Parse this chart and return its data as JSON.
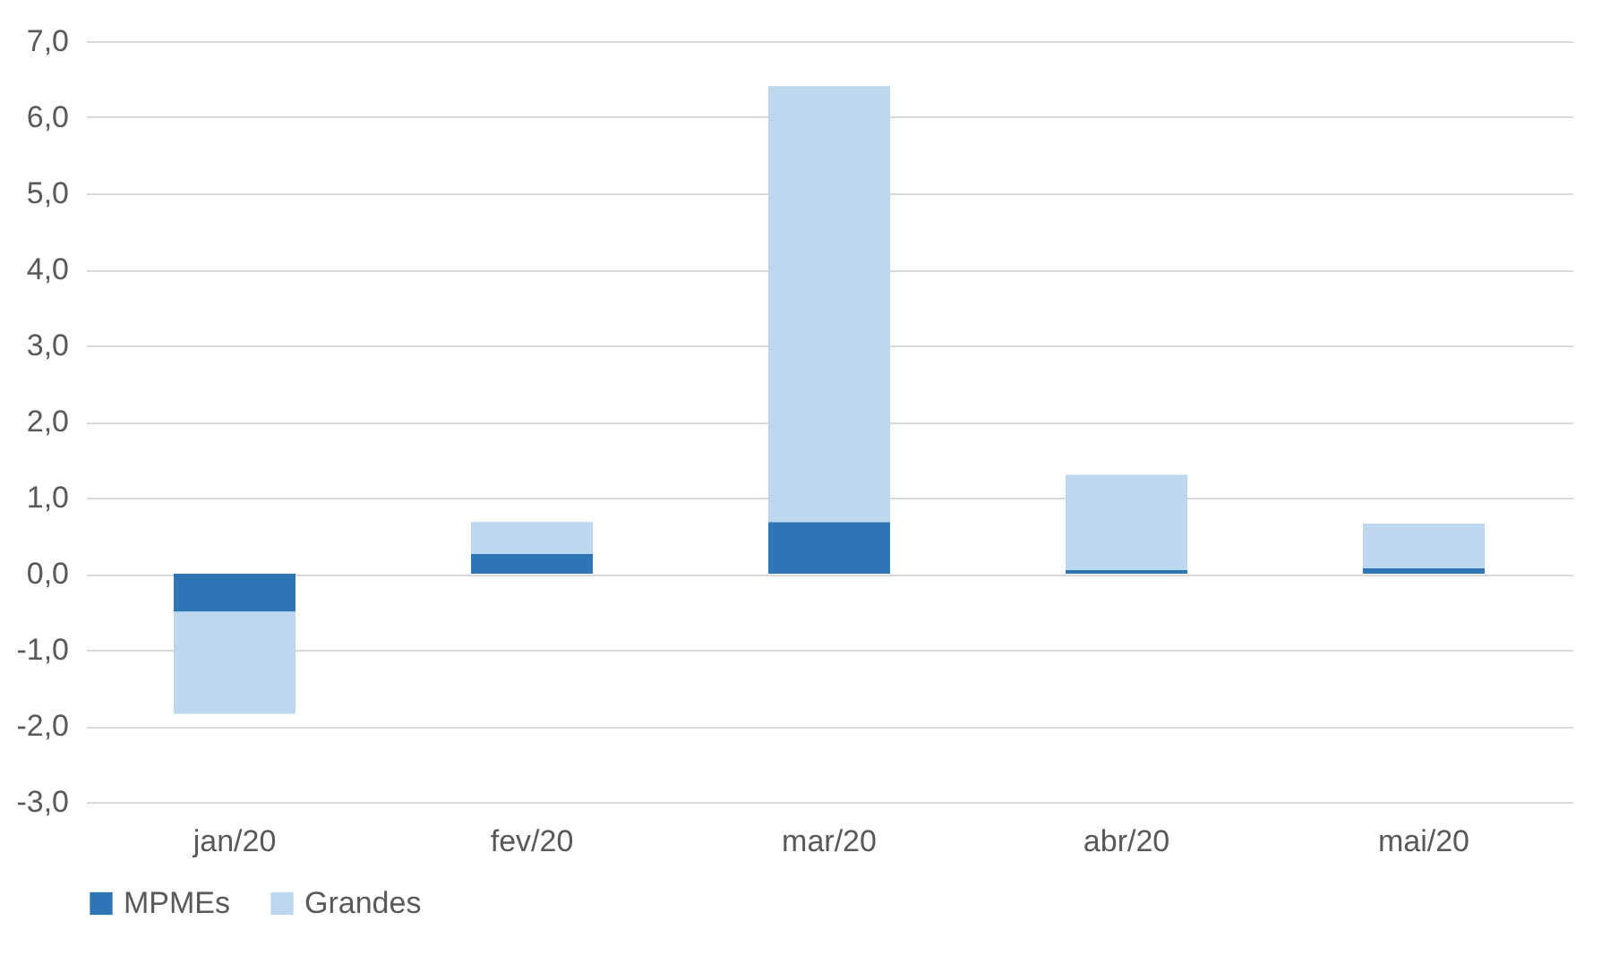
{
  "chart_data": {
    "type": "bar",
    "stacked": true,
    "categories": [
      "jan/20",
      "fev/20",
      "mar/20",
      "abr/20",
      "mai/20"
    ],
    "series": [
      {
        "name": "MPMEs",
        "color": "#2e75b6",
        "values": [
          -0.5,
          0.26,
          0.68,
          0.05,
          0.07
        ]
      },
      {
        "name": "Grandes",
        "color": "#bdd7ee",
        "values": [
          -1.34,
          0.42,
          5.73,
          1.25,
          0.59
        ]
      }
    ],
    "ylim": [
      -3,
      7
    ],
    "yticks": [
      {
        "value": -3,
        "label": "-3,0"
      },
      {
        "value": -2,
        "label": "-2,0"
      },
      {
        "value": -1,
        "label": "-1,0"
      },
      {
        "value": 0,
        "label": "0,0"
      },
      {
        "value": 1,
        "label": "1,0"
      },
      {
        "value": 2,
        "label": "2,0"
      },
      {
        "value": 3,
        "label": "3,0"
      },
      {
        "value": 4,
        "label": "4,0"
      },
      {
        "value": 5,
        "label": "5,0"
      },
      {
        "value": 6,
        "label": "6,0"
      },
      {
        "value": 7,
        "label": "7,0"
      }
    ],
    "grid": "y",
    "legend": "bottom"
  }
}
